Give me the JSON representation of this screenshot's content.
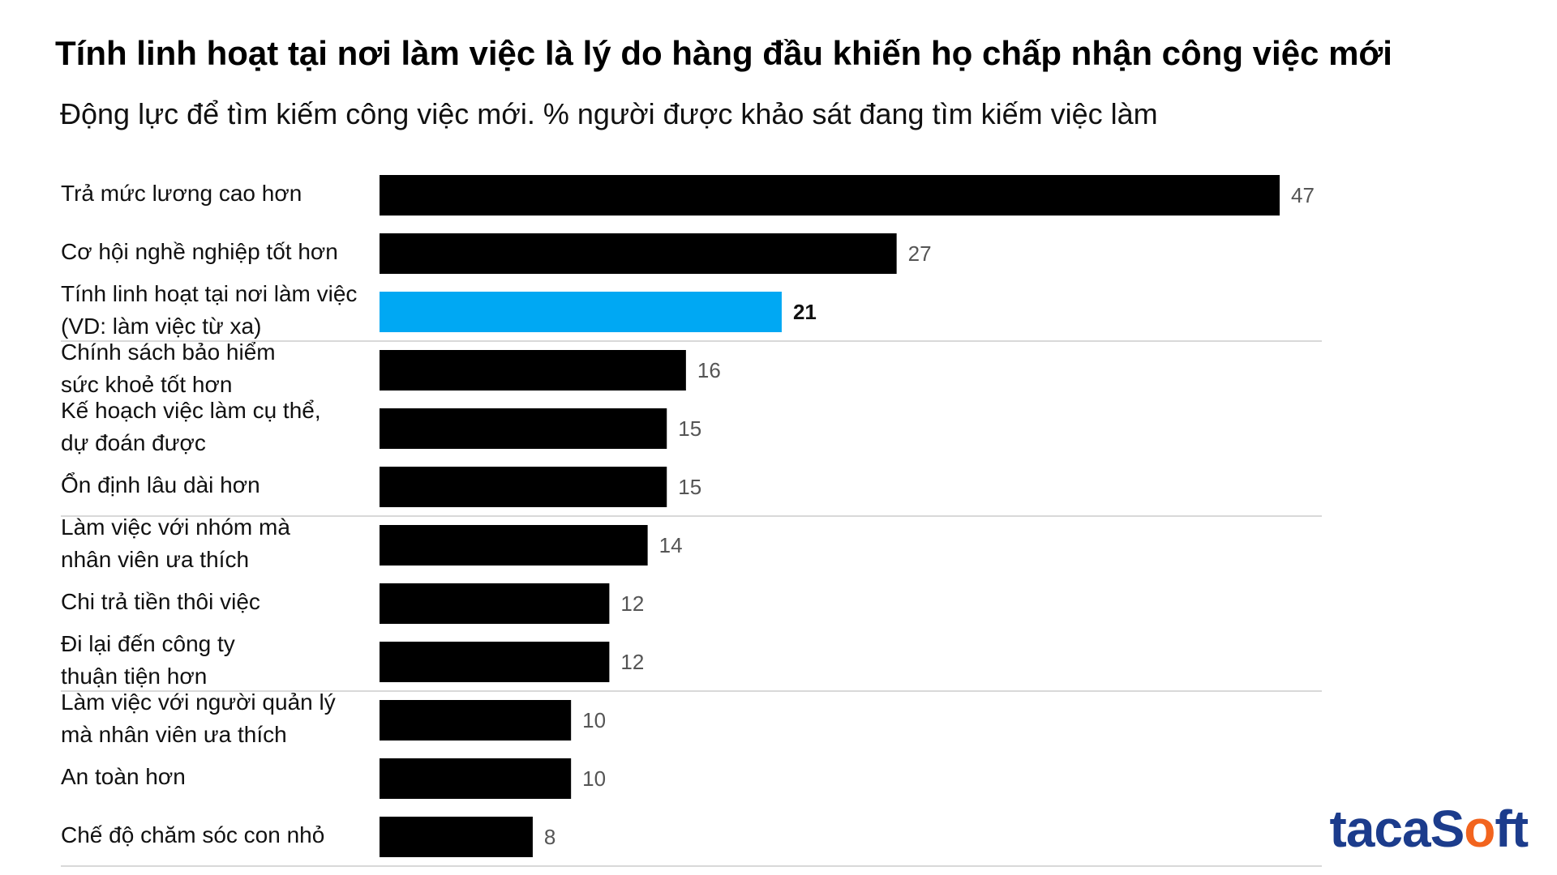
{
  "chart_data": {
    "type": "bar",
    "orientation": "horizontal",
    "title": "Tính linh hoạt tại nơi làm việc là lý do hàng đầu khiến họ chấp nhận công việc mới",
    "subtitle": "Động lực để tìm kiếm công việc mới. % người được khảo sát đang tìm kiếm việc làm",
    "categories": [
      "Trả mức lương cao hơn",
      "Cơ hội nghề nghiệp tốt hơn",
      "Tính linh hoạt tại nơi làm việc\n(VD: làm việc từ xa)",
      "Chính sách bảo hiểm\nsức khoẻ tốt hơn",
      "Kế hoạch việc làm cụ thể,\ndự đoán được",
      "Ổn định lâu dài hơn",
      "Làm việc với nhóm mà\nnhân viên ưa thích",
      "Chi trả tiền thôi việc",
      "Đi lại đến công ty\nthuận tiện hơn",
      "Làm việc với người quản lý\nmà nhân viên ưa thích",
      "An toàn hơn",
      "Chế độ chăm sóc con nhỏ"
    ],
    "values": [
      47,
      27,
      21,
      16,
      15,
      15,
      14,
      12,
      12,
      10,
      10,
      8
    ],
    "highlight_index": 2,
    "colors": {
      "bar": "#000000",
      "highlight": "#00a8f3",
      "separator": "#d9d9d9"
    },
    "xlim": [
      0,
      47
    ],
    "grid": false,
    "legend": "none"
  },
  "logo": {
    "part1": "taca",
    "part2": "S",
    "part3": "o",
    "part4": "ft"
  }
}
